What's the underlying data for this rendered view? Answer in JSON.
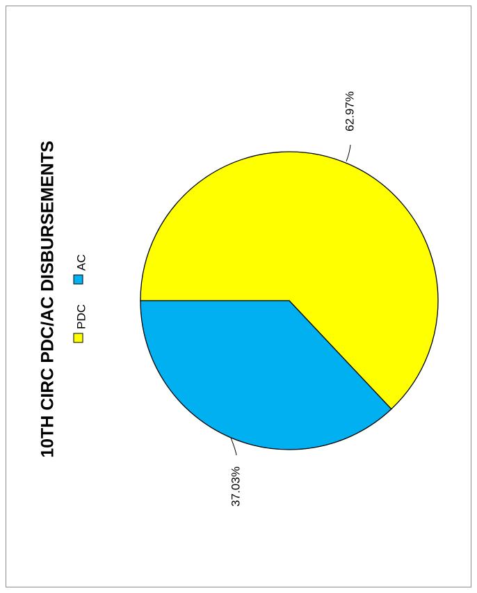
{
  "chart_data": {
    "type": "pie",
    "title": "10TH CIRC PDC/AC DISBURSEMENTS",
    "orientation": "rotated-90-ccw",
    "legend_position": "top",
    "slices": [
      {
        "name": "PDC",
        "value": 62.97,
        "label": "62.97%",
        "color": "#FFFF00"
      },
      {
        "name": "AC",
        "value": 37.03,
        "label": "37.03%",
        "color": "#00B0F0"
      }
    ]
  }
}
